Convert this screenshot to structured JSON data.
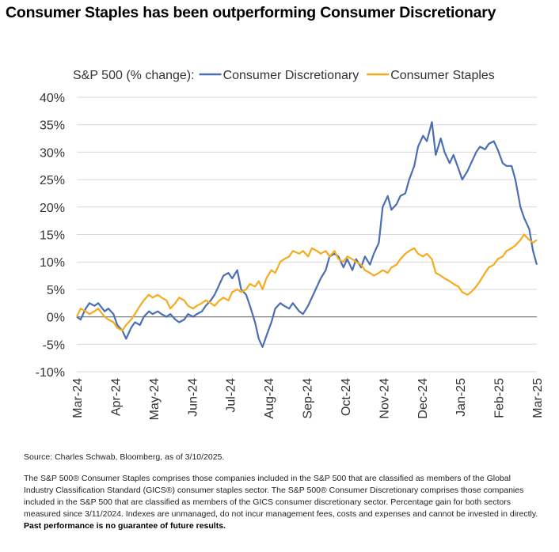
{
  "page": {
    "title": "Consumer Staples has been outperforming Consumer Discretionary",
    "source": "Source: Charles Schwab, Bloomberg, as of 3/10/2025.",
    "notes": "The S&P 500® Consumer Staples comprises those companies included in the S&P 500 that are classified as members of the Global Industry Classification Standard (GICS®) consumer staples sector. The S&P 500® Consumer Discretionary comprises those companies included in the S&P 500 that are classified as members of the GICS consumer discretionary sector. Percentage gain for both sectors measured since 3/11/2024. Indexes are unmanaged, do not incur management fees, costs and expenses and cannot be invested in directly.",
    "disclaimer": "Past performance is no guarantee of future results."
  },
  "chart_data": {
    "type": "line",
    "legend_prefix": "S&P 500 (% change):",
    "legend_position": "top",
    "ylim": [
      -10,
      40
    ],
    "y_ticks": [
      "-10%",
      "-5%",
      "0%",
      "5%",
      "10%",
      "15%",
      "20%",
      "25%",
      "30%",
      "35%",
      "40%"
    ],
    "x_ticks": [
      "Mar-24",
      "Apr-24",
      "May-24",
      "Jun-24",
      "Jul-24",
      "Aug-24",
      "Sep-24",
      "Oct-24",
      "Nov-24",
      "Dec-24",
      "Jan-25",
      "Feb-25",
      "Mar-25"
    ],
    "grid": true,
    "colors": {
      "discretionary": "#4a6fb4",
      "staples": "#f5ab1e",
      "grid": "#d9d9d9",
      "zero_line": "#7f7f7f"
    },
    "series": [
      {
        "name": "Consumer Discretionary",
        "color": "#4a6fb4",
        "points": [
          [
            "2024-03-11",
            0.0
          ],
          [
            "2024-03-14",
            -0.5
          ],
          [
            "2024-03-18",
            1.5
          ],
          [
            "2024-03-21",
            2.5
          ],
          [
            "2024-03-25",
            2.0
          ],
          [
            "2024-03-28",
            2.5
          ],
          [
            "2024-04-02",
            1.0
          ],
          [
            "2024-04-05",
            1.5
          ],
          [
            "2024-04-09",
            0.5
          ],
          [
            "2024-04-12",
            -1.5
          ],
          [
            "2024-04-16",
            -2.5
          ],
          [
            "2024-04-19",
            -4.0
          ],
          [
            "2024-04-23",
            -2.0
          ],
          [
            "2024-04-26",
            -1.0
          ],
          [
            "2024-04-30",
            -1.5
          ],
          [
            "2024-05-03",
            0.0
          ],
          [
            "2024-05-07",
            1.0
          ],
          [
            "2024-05-10",
            0.5
          ],
          [
            "2024-05-14",
            1.0
          ],
          [
            "2024-05-17",
            0.5
          ],
          [
            "2024-05-21",
            0.0
          ],
          [
            "2024-05-24",
            0.5
          ],
          [
            "2024-05-28",
            -0.5
          ],
          [
            "2024-05-31",
            -1.0
          ],
          [
            "2024-06-04",
            -0.5
          ],
          [
            "2024-06-07",
            0.5
          ],
          [
            "2024-06-11",
            0.0
          ],
          [
            "2024-06-14",
            0.5
          ],
          [
            "2024-06-18",
            1.0
          ],
          [
            "2024-06-21",
            2.0
          ],
          [
            "2024-06-25",
            3.0
          ],
          [
            "2024-06-28",
            4.0
          ],
          [
            "2024-07-02",
            6.0
          ],
          [
            "2024-07-05",
            7.5
          ],
          [
            "2024-07-09",
            8.0
          ],
          [
            "2024-07-12",
            7.0
          ],
          [
            "2024-07-16",
            8.5
          ],
          [
            "2024-07-19",
            5.0
          ],
          [
            "2024-07-23",
            4.0
          ],
          [
            "2024-07-26",
            2.0
          ],
          [
            "2024-07-30",
            -1.0
          ],
          [
            "2024-08-02",
            -4.0
          ],
          [
            "2024-08-05",
            -5.5
          ],
          [
            "2024-08-08",
            -3.5
          ],
          [
            "2024-08-12",
            -1.0
          ],
          [
            "2024-08-15",
            1.5
          ],
          [
            "2024-08-19",
            2.5
          ],
          [
            "2024-08-22",
            2.0
          ],
          [
            "2024-08-26",
            1.5
          ],
          [
            "2024-08-29",
            2.5
          ],
          [
            "2024-09-03",
            1.0
          ],
          [
            "2024-09-06",
            0.5
          ],
          [
            "2024-09-10",
            2.0
          ],
          [
            "2024-09-13",
            3.5
          ],
          [
            "2024-09-17",
            5.5
          ],
          [
            "2024-09-20",
            7.0
          ],
          [
            "2024-09-24",
            8.5
          ],
          [
            "2024-09-27",
            11.0
          ],
          [
            "2024-10-01",
            11.5
          ],
          [
            "2024-10-04",
            11.0
          ],
          [
            "2024-10-08",
            9.0
          ],
          [
            "2024-10-11",
            10.5
          ],
          [
            "2024-10-15",
            8.5
          ],
          [
            "2024-10-18",
            10.5
          ],
          [
            "2024-10-22",
            9.0
          ],
          [
            "2024-10-25",
            11.0
          ],
          [
            "2024-10-29",
            9.5
          ],
          [
            "2024-11-01",
            11.5
          ],
          [
            "2024-11-05",
            13.5
          ],
          [
            "2024-11-08",
            20.0
          ],
          [
            "2024-11-12",
            22.0
          ],
          [
            "2024-11-15",
            19.5
          ],
          [
            "2024-11-19",
            20.5
          ],
          [
            "2024-11-22",
            22.0
          ],
          [
            "2024-11-26",
            22.5
          ],
          [
            "2024-11-29",
            25.0
          ],
          [
            "2024-12-03",
            27.5
          ],
          [
            "2024-12-06",
            31.0
          ],
          [
            "2024-12-10",
            33.0
          ],
          [
            "2024-12-13",
            32.0
          ],
          [
            "2024-12-17",
            35.5
          ],
          [
            "2024-12-20",
            29.5
          ],
          [
            "2024-12-24",
            32.5
          ],
          [
            "2024-12-27",
            30.0
          ],
          [
            "2024-12-31",
            28.0
          ],
          [
            "2025-01-03",
            29.5
          ],
          [
            "2025-01-07",
            27.0
          ],
          [
            "2025-01-10",
            25.0
          ],
          [
            "2025-01-14",
            26.5
          ],
          [
            "2025-01-17",
            28.0
          ],
          [
            "2025-01-21",
            30.0
          ],
          [
            "2025-01-24",
            31.0
          ],
          [
            "2025-01-28",
            30.5
          ],
          [
            "2025-01-31",
            31.5
          ],
          [
            "2025-02-04",
            32.0
          ],
          [
            "2025-02-07",
            30.5
          ],
          [
            "2025-02-11",
            28.0
          ],
          [
            "2025-02-14",
            27.5
          ],
          [
            "2025-02-18",
            27.5
          ],
          [
            "2025-02-21",
            25.0
          ],
          [
            "2025-02-25",
            20.0
          ],
          [
            "2025-02-28",
            18.0
          ],
          [
            "2025-03-04",
            16.0
          ],
          [
            "2025-03-07",
            12.0
          ],
          [
            "2025-03-10",
            9.5
          ]
        ]
      },
      {
        "name": "Consumer Staples",
        "color": "#f5ab1e",
        "points": [
          [
            "2024-03-11",
            0.0
          ],
          [
            "2024-03-14",
            1.5
          ],
          [
            "2024-03-18",
            1.0
          ],
          [
            "2024-03-21",
            0.5
          ],
          [
            "2024-03-25",
            1.0
          ],
          [
            "2024-03-28",
            1.5
          ],
          [
            "2024-04-02",
            0.0
          ],
          [
            "2024-04-05",
            -0.5
          ],
          [
            "2024-04-09",
            -1.0
          ],
          [
            "2024-04-12",
            -2.0
          ],
          [
            "2024-04-16",
            -2.5
          ],
          [
            "2024-04-19",
            -1.5
          ],
          [
            "2024-04-23",
            -0.5
          ],
          [
            "2024-04-26",
            0.5
          ],
          [
            "2024-04-30",
            2.0
          ],
          [
            "2024-05-03",
            3.0
          ],
          [
            "2024-05-07",
            4.0
          ],
          [
            "2024-05-10",
            3.5
          ],
          [
            "2024-05-14",
            4.0
          ],
          [
            "2024-05-17",
            3.5
          ],
          [
            "2024-05-21",
            3.0
          ],
          [
            "2024-05-24",
            1.5
          ],
          [
            "2024-05-28",
            2.5
          ],
          [
            "2024-05-31",
            3.5
          ],
          [
            "2024-06-04",
            3.0
          ],
          [
            "2024-06-07",
            2.0
          ],
          [
            "2024-06-11",
            1.5
          ],
          [
            "2024-06-14",
            2.0
          ],
          [
            "2024-06-18",
            2.5
          ],
          [
            "2024-06-21",
            3.0
          ],
          [
            "2024-06-25",
            2.5
          ],
          [
            "2024-06-28",
            2.0
          ],
          [
            "2024-07-02",
            3.0
          ],
          [
            "2024-07-05",
            3.5
          ],
          [
            "2024-07-09",
            3.0
          ],
          [
            "2024-07-12",
            4.5
          ],
          [
            "2024-07-16",
            5.0
          ],
          [
            "2024-07-19",
            4.5
          ],
          [
            "2024-07-23",
            5.0
          ],
          [
            "2024-07-26",
            6.0
          ],
          [
            "2024-07-30",
            5.5
          ],
          [
            "2024-08-02",
            6.5
          ],
          [
            "2024-08-05",
            5.0
          ],
          [
            "2024-08-08",
            7.0
          ],
          [
            "2024-08-12",
            8.5
          ],
          [
            "2024-08-15",
            8.0
          ],
          [
            "2024-08-19",
            10.0
          ],
          [
            "2024-08-22",
            10.5
          ],
          [
            "2024-08-26",
            11.0
          ],
          [
            "2024-08-29",
            12.0
          ],
          [
            "2024-09-03",
            11.5
          ],
          [
            "2024-09-06",
            12.0
          ],
          [
            "2024-09-10",
            11.0
          ],
          [
            "2024-09-13",
            12.5
          ],
          [
            "2024-09-17",
            12.0
          ],
          [
            "2024-09-20",
            11.5
          ],
          [
            "2024-09-24",
            12.0
          ],
          [
            "2024-09-27",
            11.0
          ],
          [
            "2024-10-01",
            12.0
          ],
          [
            "2024-10-04",
            10.5
          ],
          [
            "2024-10-08",
            10.0
          ],
          [
            "2024-10-11",
            11.0
          ],
          [
            "2024-10-15",
            10.5
          ],
          [
            "2024-10-18",
            10.0
          ],
          [
            "2024-10-22",
            9.5
          ],
          [
            "2024-10-25",
            8.5
          ],
          [
            "2024-10-29",
            8.0
          ],
          [
            "2024-11-01",
            7.5
          ],
          [
            "2024-11-05",
            8.0
          ],
          [
            "2024-11-08",
            8.5
          ],
          [
            "2024-11-12",
            8.0
          ],
          [
            "2024-11-15",
            9.0
          ],
          [
            "2024-11-19",
            9.5
          ],
          [
            "2024-11-22",
            10.5
          ],
          [
            "2024-11-26",
            11.5
          ],
          [
            "2024-11-29",
            12.0
          ],
          [
            "2024-12-03",
            12.5
          ],
          [
            "2024-12-06",
            11.5
          ],
          [
            "2024-12-10",
            11.0
          ],
          [
            "2024-12-13",
            11.5
          ],
          [
            "2024-12-17",
            10.5
          ],
          [
            "2024-12-20",
            8.0
          ],
          [
            "2024-12-24",
            7.5
          ],
          [
            "2024-12-27",
            7.0
          ],
          [
            "2024-12-31",
            6.5
          ],
          [
            "2025-01-03",
            6.0
          ],
          [
            "2025-01-07",
            5.5
          ],
          [
            "2025-01-10",
            4.5
          ],
          [
            "2025-01-14",
            4.0
          ],
          [
            "2025-01-17",
            4.5
          ],
          [
            "2025-01-21",
            5.5
          ],
          [
            "2025-01-24",
            6.5
          ],
          [
            "2025-01-28",
            8.0
          ],
          [
            "2025-01-31",
            9.0
          ],
          [
            "2025-02-04",
            9.5
          ],
          [
            "2025-02-07",
            10.5
          ],
          [
            "2025-02-11",
            11.0
          ],
          [
            "2025-02-14",
            12.0
          ],
          [
            "2025-02-18",
            12.5
          ],
          [
            "2025-02-21",
            13.0
          ],
          [
            "2025-02-25",
            14.0
          ],
          [
            "2025-02-28",
            15.0
          ],
          [
            "2025-03-04",
            14.0
          ],
          [
            "2025-03-07",
            13.5
          ],
          [
            "2025-03-10",
            14.0
          ]
        ]
      }
    ]
  }
}
